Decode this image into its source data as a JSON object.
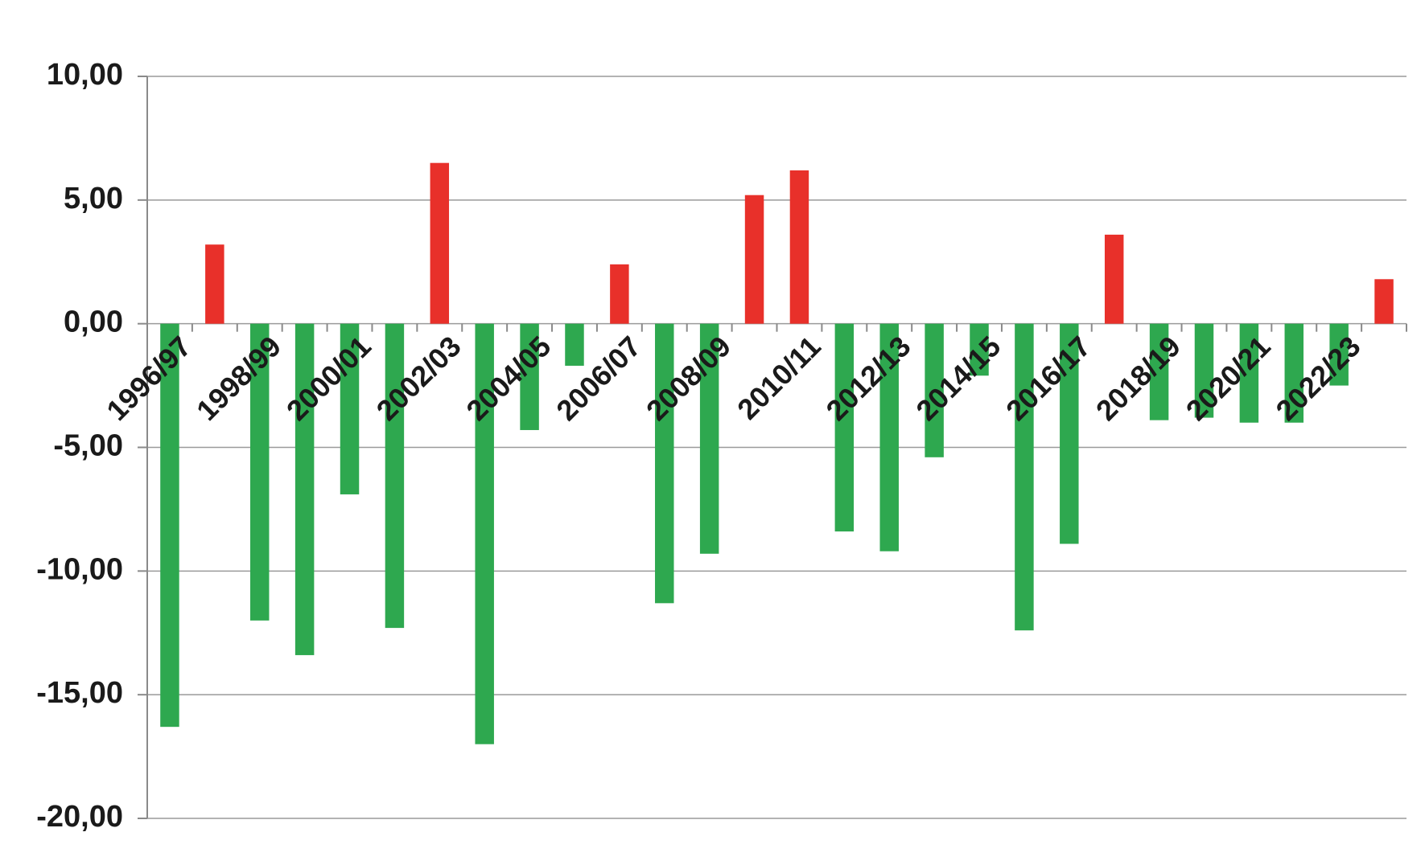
{
  "chart_data": {
    "type": "bar",
    "categories": [
      "1996/97",
      null,
      "1998/99",
      null,
      "2000/01",
      null,
      "2002/03",
      null,
      "2004/05",
      null,
      "2006/07",
      null,
      "2008/09",
      null,
      "2010/11",
      null,
      "2012/13",
      null,
      "2014/15",
      null,
      "2016/17",
      null,
      "2018/19",
      null,
      "2020/21",
      null,
      "2022/23",
      null
    ],
    "values": [
      -16.3,
      3.2,
      -12.0,
      -13.4,
      -6.9,
      -12.3,
      6.5,
      -17.0,
      -4.3,
      -1.7,
      2.4,
      -11.3,
      -9.3,
      5.2,
      6.2,
      -8.4,
      -9.2,
      -5.4,
      -2.1,
      -12.4,
      -8.9,
      3.6,
      -3.9,
      -3.8,
      -4.0,
      -4.0,
      -2.5,
      1.8
    ],
    "colors": {
      "positive": "#e8302a",
      "negative": "#2ea84f"
    },
    "ylim": [
      -20,
      10
    ],
    "yticks": [
      {
        "value": -20,
        "label": "-20,00"
      },
      {
        "value": -15,
        "label": "-15,00"
      },
      {
        "value": -10,
        "label": "-10,00"
      },
      {
        "value": -5,
        "label": "-5,00"
      },
      {
        "value": 0,
        "label": "0,00"
      },
      {
        "value": 5,
        "label": "5,00"
      },
      {
        "value": 10,
        "label": "10,00"
      }
    ],
    "grid": true
  }
}
